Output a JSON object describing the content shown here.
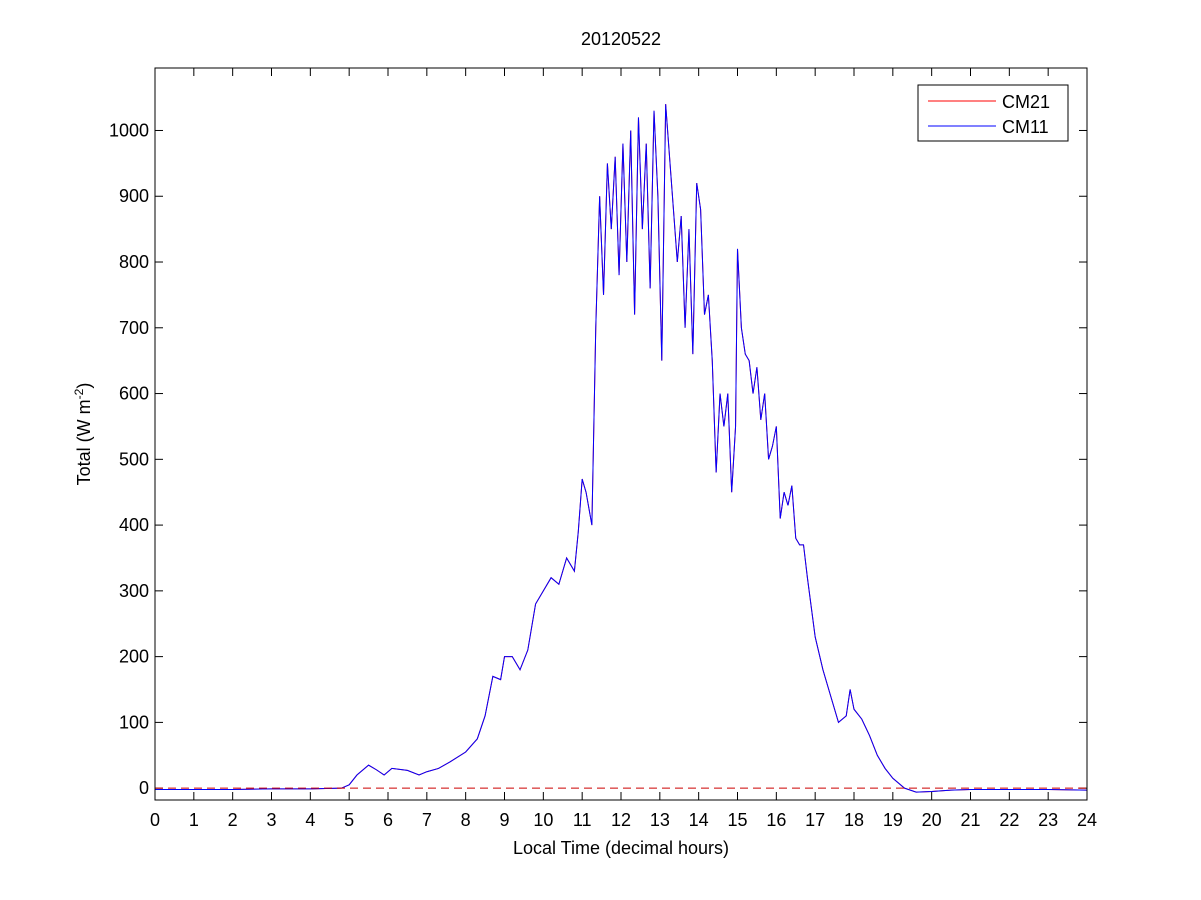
{
  "chart_data": {
    "type": "line",
    "title": "20120522",
    "xlabel": "Local Time (decimal hours)",
    "ylabel": {
      "text": "Total (W m",
      "superscript": "-2",
      "suffix": ")"
    },
    "x": [
      0,
      1,
      2,
      3,
      4,
      4.8,
      5.0,
      5.2,
      5.5,
      5.7,
      5.9,
      6.1,
      6.5,
      6.8,
      7.0,
      7.3,
      7.6,
      8.0,
      8.3,
      8.5,
      8.7,
      8.9,
      9.0,
      9.2,
      9.4,
      9.6,
      9.8,
      10.0,
      10.2,
      10.4,
      10.6,
      10.8,
      10.9,
      11.0,
      11.1,
      11.25,
      11.35,
      11.45,
      11.55,
      11.65,
      11.75,
      11.85,
      11.95,
      12.05,
      12.15,
      12.25,
      12.35,
      12.45,
      12.55,
      12.65,
      12.75,
      12.85,
      12.95,
      13.05,
      13.15,
      13.25,
      13.35,
      13.45,
      13.55,
      13.65,
      13.75,
      13.85,
      13.95,
      14.05,
      14.15,
      14.25,
      14.35,
      14.45,
      14.55,
      14.65,
      14.75,
      14.85,
      14.95,
      15.0,
      15.1,
      15.2,
      15.3,
      15.4,
      15.5,
      15.6,
      15.7,
      15.8,
      15.9,
      16.0,
      16.1,
      16.2,
      16.3,
      16.4,
      16.5,
      16.6,
      16.7,
      16.8,
      17.0,
      17.2,
      17.4,
      17.6,
      17.8,
      17.9,
      18.0,
      18.2,
      18.4,
      18.6,
      18.8,
      19.0,
      19.3,
      19.6,
      20.0,
      20.5,
      21,
      22,
      23,
      24
    ],
    "series": [
      {
        "name": "CM21",
        "color": "#ff0000",
        "values": [
          -2,
          -2,
          -2,
          -1,
          -1,
          0,
          5,
          20,
          35,
          28,
          20,
          30,
          27,
          20,
          25,
          30,
          40,
          55,
          75,
          110,
          170,
          165,
          200,
          200,
          180,
          210,
          280,
          300,
          320,
          310,
          350,
          330,
          390,
          470,
          450,
          400,
          700,
          900,
          750,
          950,
          850,
          960,
          780,
          980,
          800,
          1000,
          720,
          1020,
          850,
          980,
          760,
          1030,
          900,
          650,
          1040,
          960,
          880,
          800,
          870,
          700,
          850,
          660,
          920,
          880,
          720,
          750,
          650,
          480,
          600,
          550,
          600,
          450,
          550,
          820,
          700,
          660,
          650,
          600,
          640,
          560,
          600,
          500,
          520,
          550,
          410,
          450,
          430,
          460,
          380,
          370,
          370,
          320,
          230,
          180,
          140,
          100,
          110,
          150,
          120,
          105,
          80,
          50,
          30,
          15,
          0,
          -6,
          -5,
          -3,
          -2,
          -2,
          -2,
          -3
        ]
      },
      {
        "name": "CM11",
        "color": "#0000ff",
        "values": [
          -2,
          -2,
          -2,
          -1,
          -1,
          0,
          5,
          20,
          35,
          28,
          20,
          30,
          27,
          20,
          25,
          30,
          40,
          55,
          75,
          110,
          170,
          165,
          200,
          200,
          180,
          210,
          280,
          300,
          320,
          310,
          350,
          330,
          390,
          470,
          450,
          400,
          700,
          900,
          750,
          950,
          850,
          960,
          780,
          980,
          800,
          1000,
          720,
          1020,
          850,
          980,
          760,
          1030,
          900,
          650,
          1040,
          960,
          880,
          800,
          870,
          700,
          850,
          660,
          920,
          880,
          720,
          750,
          650,
          480,
          600,
          550,
          600,
          450,
          550,
          820,
          700,
          660,
          650,
          600,
          640,
          560,
          600,
          500,
          520,
          550,
          410,
          450,
          430,
          460,
          380,
          370,
          370,
          320,
          230,
          180,
          140,
          100,
          110,
          150,
          120,
          105,
          80,
          50,
          30,
          15,
          0,
          -6,
          -5,
          -3,
          -2,
          -2,
          -2,
          -3
        ]
      }
    ],
    "hline": {
      "value": 0,
      "color": "#cc0000",
      "style": "dashed"
    },
    "xlim": [
      0,
      24
    ],
    "xticks": [
      0,
      1,
      2,
      3,
      4,
      5,
      6,
      7,
      8,
      9,
      10,
      11,
      12,
      13,
      14,
      15,
      16,
      17,
      18,
      19,
      20,
      21,
      22,
      23,
      24
    ],
    "ylim": [
      -18,
      1095
    ],
    "yticks": [
      0,
      100,
      200,
      300,
      400,
      500,
      600,
      700,
      800,
      900,
      1000
    ],
    "legend": "upper right",
    "grid": false
  }
}
